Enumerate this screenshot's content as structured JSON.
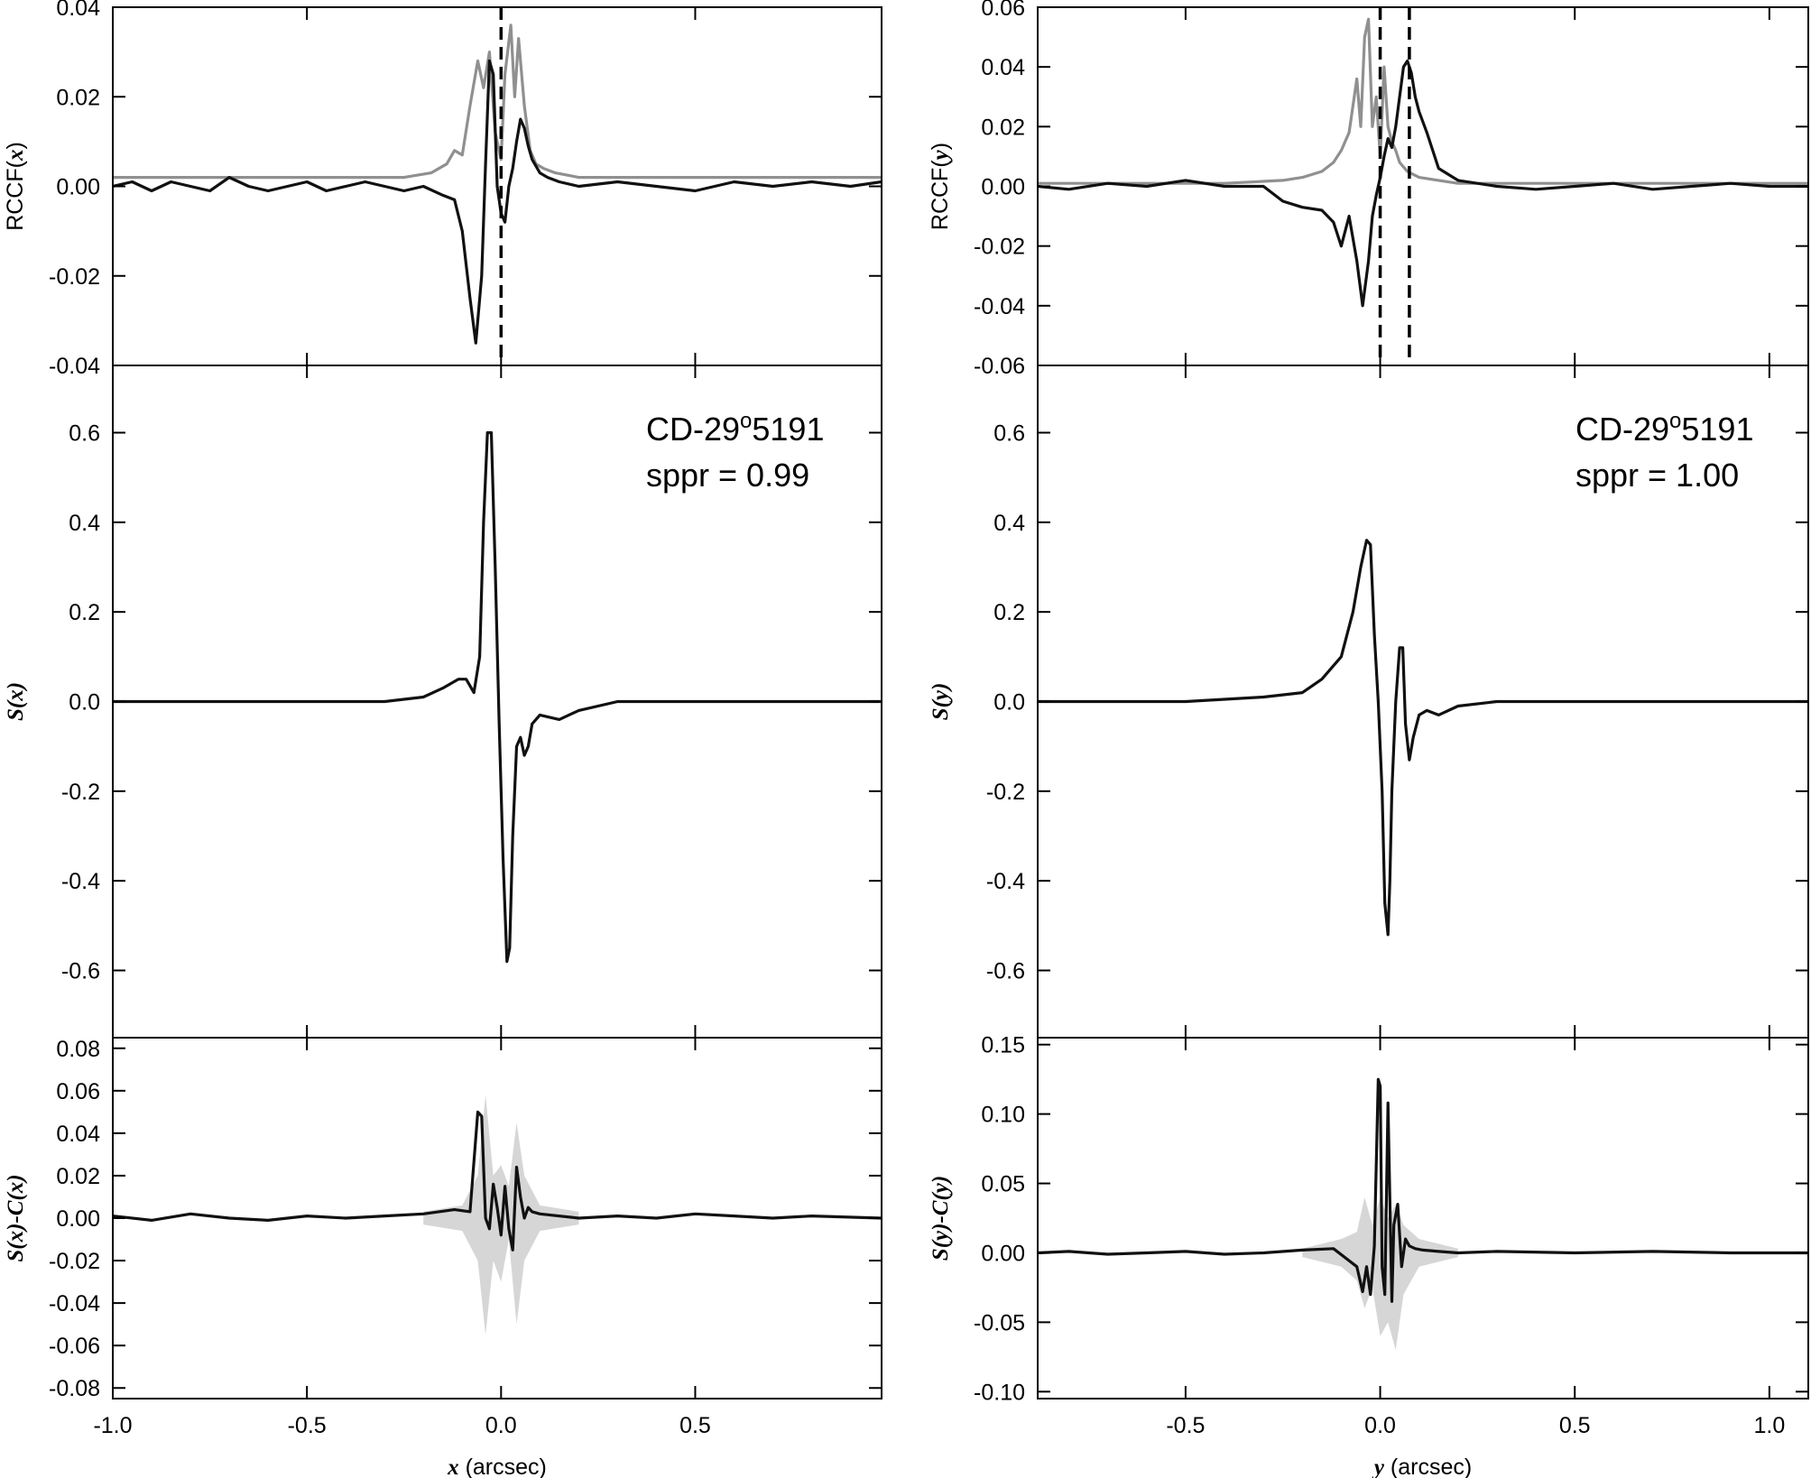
{
  "chart_data": [
    {
      "id": "x-rccf",
      "type": "line",
      "column": "left",
      "row": "top",
      "ylabel_prefix": "RCCF(",
      "ylabel_var": "x",
      "ylabel_suffix": ")",
      "xlim": [
        -1.0,
        0.98
      ],
      "ylim": [
        -0.04,
        0.04
      ],
      "yticks": [
        -0.04,
        -0.02,
        0.0,
        0.02,
        0.04
      ],
      "ytick_labels": [
        "-0.04",
        "-0.02",
        "0.00",
        "0.02",
        "0.04"
      ],
      "xticks": [
        -1.0,
        -0.5,
        0.0,
        0.5
      ],
      "vlines": [
        0.0
      ],
      "series": [
        {
          "color": "#909090",
          "x": [
            -1.0,
            -0.8,
            -0.6,
            -0.4,
            -0.25,
            -0.18,
            -0.14,
            -0.12,
            -0.1,
            -0.08,
            -0.06,
            -0.045,
            -0.03,
            -0.015,
            0.0,
            0.01,
            0.025,
            0.035,
            0.045,
            0.06,
            0.075,
            0.09,
            0.11,
            0.14,
            0.2,
            0.3,
            0.5,
            0.7,
            0.98
          ],
          "y": [
            0.002,
            0.002,
            0.002,
            0.002,
            0.002,
            0.003,
            0.005,
            0.008,
            0.007,
            0.018,
            0.028,
            0.022,
            0.03,
            0.012,
            0.006,
            0.025,
            0.036,
            0.02,
            0.033,
            0.018,
            0.008,
            0.005,
            0.004,
            0.003,
            0.002,
            0.002,
            0.002,
            0.002,
            0.002
          ]
        },
        {
          "color": "#111111",
          "x": [
            -1.0,
            -0.95,
            -0.9,
            -0.85,
            -0.8,
            -0.75,
            -0.7,
            -0.65,
            -0.6,
            -0.55,
            -0.5,
            -0.45,
            -0.4,
            -0.35,
            -0.3,
            -0.25,
            -0.2,
            -0.15,
            -0.12,
            -0.1,
            -0.08,
            -0.065,
            -0.05,
            -0.04,
            -0.03,
            -0.02,
            -0.01,
            0.0,
            0.01,
            0.02,
            0.03,
            0.04,
            0.05,
            0.06,
            0.07,
            0.08,
            0.1,
            0.12,
            0.15,
            0.2,
            0.3,
            0.4,
            0.5,
            0.6,
            0.7,
            0.8,
            0.9,
            0.98
          ],
          "y": [
            0.0,
            0.001,
            -0.001,
            0.001,
            0.0,
            -0.001,
            0.002,
            0.0,
            -0.001,
            0.0,
            0.001,
            -0.001,
            0.0,
            0.001,
            0.0,
            -0.001,
            0.0,
            -0.002,
            -0.003,
            -0.01,
            -0.025,
            -0.035,
            -0.02,
            0.005,
            0.028,
            0.025,
            0.0,
            -0.006,
            -0.008,
            0.0,
            0.004,
            0.01,
            0.015,
            0.013,
            0.009,
            0.006,
            0.003,
            0.002,
            0.001,
            0.0,
            0.001,
            0.0,
            -0.001,
            0.001,
            0.0,
            0.001,
            0.0,
            0.001
          ]
        }
      ]
    },
    {
      "id": "y-rccf",
      "type": "line",
      "column": "right",
      "row": "top",
      "ylabel_prefix": "RCCF(",
      "ylabel_var": "y",
      "ylabel_suffix": ")",
      "xlim": [
        -0.88,
        1.1
      ],
      "ylim": [
        -0.06,
        0.06
      ],
      "yticks": [
        -0.06,
        -0.04,
        -0.02,
        0.0,
        0.02,
        0.04,
        0.06
      ],
      "ytick_labels": [
        "-0.06",
        "-0.04",
        "-0.02",
        "0.00",
        "0.02",
        "0.04",
        "0.06"
      ],
      "xticks": [
        -0.5,
        0.0,
        0.5,
        1.0
      ],
      "vlines": [
        0.0,
        0.075
      ],
      "series": [
        {
          "color": "#909090",
          "x": [
            -0.88,
            -0.6,
            -0.4,
            -0.25,
            -0.2,
            -0.15,
            -0.12,
            -0.1,
            -0.08,
            -0.06,
            -0.05,
            -0.04,
            -0.03,
            -0.02,
            -0.01,
            0.0,
            0.01,
            0.02,
            0.03,
            0.04,
            0.05,
            0.07,
            0.1,
            0.15,
            0.2,
            0.3,
            0.5,
            0.8,
            1.1
          ],
          "y": [
            0.001,
            0.001,
            0.001,
            0.002,
            0.003,
            0.005,
            0.008,
            0.012,
            0.018,
            0.036,
            0.02,
            0.05,
            0.056,
            0.02,
            0.03,
            0.01,
            0.04,
            0.02,
            0.015,
            0.012,
            0.008,
            0.005,
            0.003,
            0.002,
            0.001,
            0.001,
            0.001,
            0.001,
            0.001
          ]
        },
        {
          "color": "#111111",
          "x": [
            -0.88,
            -0.8,
            -0.7,
            -0.6,
            -0.5,
            -0.4,
            -0.3,
            -0.25,
            -0.2,
            -0.15,
            -0.12,
            -0.1,
            -0.08,
            -0.06,
            -0.045,
            -0.03,
            -0.02,
            -0.01,
            0.0,
            0.01,
            0.02,
            0.03,
            0.04,
            0.05,
            0.06,
            0.07,
            0.08,
            0.09,
            0.1,
            0.12,
            0.15,
            0.2,
            0.3,
            0.4,
            0.5,
            0.6,
            0.7,
            0.8,
            0.9,
            1.0,
            1.1
          ],
          "y": [
            0.0,
            -0.001,
            0.001,
            0.0,
            0.002,
            0.0,
            0.0,
            -0.005,
            -0.007,
            -0.008,
            -0.012,
            -0.02,
            -0.01,
            -0.025,
            -0.04,
            -0.025,
            -0.01,
            -0.003,
            0.003,
            0.01,
            0.016,
            0.013,
            0.02,
            0.03,
            0.04,
            0.042,
            0.038,
            0.03,
            0.025,
            0.018,
            0.006,
            0.002,
            0.0,
            -0.001,
            0.0,
            0.001,
            -0.001,
            0.0,
            0.001,
            0.0,
            0.0
          ]
        }
      ]
    },
    {
      "id": "x-signal",
      "type": "line",
      "column": "left",
      "row": "middle",
      "ylabel_prefix": "",
      "ylabel_var": "S(x)",
      "ylabel_suffix": "",
      "xlim": [
        -1.0,
        0.98
      ],
      "ylim": [
        -0.75,
        0.75
      ],
      "yticks": [
        -0.6,
        -0.4,
        -0.2,
        0.0,
        0.2,
        0.4,
        0.6
      ],
      "ytick_labels": [
        "-0.6",
        "-0.4",
        "-0.2",
        "0.0",
        "0.2",
        "0.4",
        "0.6"
      ],
      "xticks": [
        -1.0,
        -0.5,
        0.0,
        0.5
      ],
      "series": [
        {
          "color": "#111111",
          "x": [
            -1.0,
            -0.5,
            -0.3,
            -0.2,
            -0.15,
            -0.11,
            -0.09,
            -0.07,
            -0.055,
            -0.045,
            -0.035,
            -0.025,
            -0.015,
            -0.005,
            0.005,
            0.015,
            0.022,
            0.03,
            0.04,
            0.05,
            0.06,
            0.07,
            0.08,
            0.1,
            0.15,
            0.2,
            0.3,
            0.5,
            0.98
          ],
          "y": [
            0.0,
            0.0,
            0.0,
            0.01,
            0.03,
            0.05,
            0.05,
            0.02,
            0.1,
            0.4,
            0.6,
            0.6,
            0.3,
            -0.05,
            -0.35,
            -0.58,
            -0.55,
            -0.3,
            -0.1,
            -0.08,
            -0.12,
            -0.1,
            -0.05,
            -0.03,
            -0.04,
            -0.02,
            0.0,
            0.0,
            0.0
          ]
        }
      ]
    },
    {
      "id": "y-signal",
      "type": "line",
      "column": "right",
      "row": "middle",
      "ylabel_prefix": "",
      "ylabel_var": "S(y)",
      "ylabel_suffix": "",
      "xlim": [
        -0.88,
        1.1
      ],
      "ylim": [
        -0.75,
        0.75
      ],
      "yticks": [
        -0.6,
        -0.4,
        -0.2,
        0.0,
        0.2,
        0.4,
        0.6
      ],
      "ytick_labels": [
        "-0.6",
        "-0.4",
        "-0.2",
        "0.0",
        "0.2",
        "0.4",
        "0.6"
      ],
      "xticks": [
        -0.5,
        0.0,
        0.5,
        1.0
      ],
      "series": [
        {
          "color": "#111111",
          "x": [
            -0.88,
            -0.5,
            -0.3,
            -0.2,
            -0.15,
            -0.1,
            -0.07,
            -0.05,
            -0.035,
            -0.025,
            -0.015,
            -0.005,
            0.005,
            0.012,
            0.02,
            0.025,
            0.03,
            0.04,
            0.05,
            0.058,
            0.065,
            0.075,
            0.085,
            0.1,
            0.12,
            0.15,
            0.2,
            0.3,
            0.5,
            1.1
          ],
          "y": [
            0.0,
            0.0,
            0.01,
            0.02,
            0.05,
            0.1,
            0.2,
            0.3,
            0.36,
            0.35,
            0.15,
            0.0,
            -0.2,
            -0.45,
            -0.52,
            -0.4,
            -0.2,
            0.0,
            0.12,
            0.12,
            -0.05,
            -0.13,
            -0.08,
            -0.03,
            -0.02,
            -0.03,
            -0.01,
            0.0,
            0.0,
            0.0
          ]
        }
      ]
    },
    {
      "id": "x-residual",
      "type": "line",
      "column": "left",
      "row": "bottom",
      "ylabel_prefix": "",
      "ylabel_var": "S(x)-C(x)",
      "ylabel_suffix": "",
      "xlim": [
        -1.0,
        0.98
      ],
      "ylim": [
        -0.085,
        0.085
      ],
      "yticks": [
        -0.08,
        -0.06,
        -0.04,
        -0.02,
        0.0,
        0.02,
        0.04,
        0.06,
        0.08
      ],
      "ytick_labels": [
        "-0.08",
        "-0.06",
        "-0.04",
        "-0.02",
        "0.00",
        "0.02",
        "0.04",
        "0.06",
        "0.08"
      ],
      "xticks": [
        -1.0,
        -0.5,
        0.0,
        0.5
      ],
      "xtick_labels": [
        "-1.0",
        "-0.5",
        "0.0",
        "0.5"
      ],
      "xlabel_var": "x",
      "xlabel_unit": " (arcsec)",
      "band": {
        "x": [
          -0.2,
          -0.1,
          -0.06,
          -0.04,
          -0.02,
          0.0,
          0.02,
          0.04,
          0.06,
          0.1,
          0.2
        ],
        "upper": [
          0.003,
          0.006,
          0.02,
          0.058,
          0.02,
          0.025,
          0.015,
          0.045,
          0.02,
          0.006,
          0.003
        ],
        "lower": [
          -0.003,
          -0.006,
          -0.02,
          -0.055,
          -0.02,
          -0.03,
          -0.01,
          -0.05,
          -0.02,
          -0.006,
          -0.003
        ]
      },
      "series": [
        {
          "color": "#111111",
          "x": [
            -1.0,
            -0.9,
            -0.8,
            -0.7,
            -0.6,
            -0.5,
            -0.4,
            -0.3,
            -0.2,
            -0.12,
            -0.08,
            -0.06,
            -0.05,
            -0.04,
            -0.03,
            -0.02,
            -0.01,
            0.0,
            0.01,
            0.02,
            0.03,
            0.04,
            0.05,
            0.06,
            0.07,
            0.08,
            0.1,
            0.2,
            0.3,
            0.4,
            0.5,
            0.6,
            0.7,
            0.8,
            0.98
          ],
          "y": [
            0.001,
            -0.001,
            0.002,
            0.0,
            -0.001,
            0.001,
            0.0,
            0.001,
            0.002,
            0.004,
            0.003,
            0.05,
            0.048,
            0.0,
            -0.005,
            0.016,
            0.005,
            -0.008,
            0.015,
            -0.005,
            -0.015,
            0.024,
            0.01,
            0.0,
            0.005,
            0.003,
            0.002,
            0.0,
            0.001,
            0.0,
            0.002,
            0.001,
            0.0,
            0.001,
            0.0
          ]
        }
      ]
    },
    {
      "id": "y-residual",
      "type": "line",
      "column": "right",
      "row": "bottom",
      "ylabel_prefix": "",
      "ylabel_var": "S(y)-C(y)",
      "ylabel_suffix": "",
      "xlim": [
        -0.88,
        1.1
      ],
      "ylim": [
        -0.105,
        0.155
      ],
      "yticks": [
        -0.1,
        -0.05,
        0.0,
        0.05,
        0.1,
        0.15
      ],
      "ytick_labels": [
        "-0.10",
        "-0.05",
        "0.00",
        "0.05",
        "0.10",
        "0.15"
      ],
      "xticks": [
        -0.5,
        0.0,
        0.5,
        1.0
      ],
      "xtick_labels": [
        "-0.5",
        "0.0",
        "0.5",
        "1.0"
      ],
      "xlabel_var": "y",
      "xlabel_unit": " (arcsec)",
      "band": {
        "x": [
          -0.2,
          -0.1,
          -0.06,
          -0.04,
          -0.02,
          0.0,
          0.02,
          0.04,
          0.06,
          0.1,
          0.2
        ],
        "upper": [
          0.003,
          0.01,
          0.015,
          0.04,
          0.02,
          0.04,
          0.025,
          0.035,
          0.02,
          0.01,
          0.003
        ],
        "lower": [
          -0.003,
          -0.01,
          -0.02,
          -0.04,
          -0.025,
          -0.06,
          -0.05,
          -0.07,
          -0.03,
          -0.01,
          -0.003
        ]
      },
      "series": [
        {
          "color": "#111111",
          "x": [
            -0.88,
            -0.8,
            -0.7,
            -0.6,
            -0.5,
            -0.4,
            -0.3,
            -0.2,
            -0.12,
            -0.06,
            -0.045,
            -0.035,
            -0.025,
            -0.015,
            -0.005,
            0.0,
            0.005,
            0.012,
            0.02,
            0.03,
            0.035,
            0.045,
            0.055,
            0.065,
            0.075,
            0.09,
            0.11,
            0.15,
            0.2,
            0.3,
            0.5,
            0.7,
            0.9,
            1.1
          ],
          "y": [
            0.0,
            0.001,
            -0.001,
            0.0,
            0.001,
            -0.001,
            0.0,
            0.002,
            0.003,
            -0.01,
            -0.028,
            -0.01,
            -0.03,
            0.005,
            0.125,
            0.12,
            -0.01,
            -0.03,
            0.108,
            -0.035,
            0.02,
            0.035,
            -0.01,
            0.01,
            0.005,
            0.003,
            0.002,
            0.001,
            0.0,
            0.001,
            0.0,
            0.001,
            0.0,
            0.0
          ]
        }
      ]
    }
  ],
  "annotations": [
    {
      "id": "left",
      "name_prefix": "CD-29",
      "name_sup": "o",
      "name_suffix": "5191",
      "sppr_label": "sppr = 0.99"
    },
    {
      "id": "right",
      "name_prefix": "CD-29",
      "name_sup": "o",
      "name_suffix": "5191",
      "sppr_label": "sppr = 1.00"
    }
  ]
}
